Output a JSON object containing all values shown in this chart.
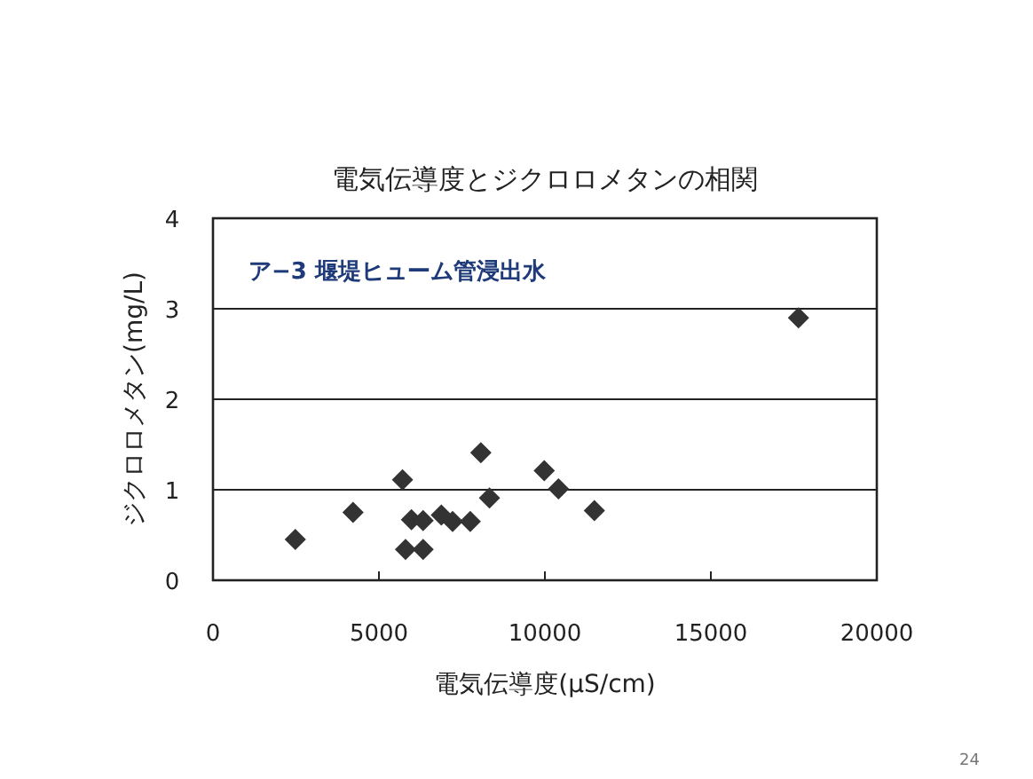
{
  "chart_data": {
    "type": "scatter",
    "title": "電気伝導度とジクロロメタンの相関",
    "xlabel": "電気伝導度(μS/cm)",
    "ylabel": "ジクロロメタン(mg/L)",
    "annotations": [
      "ア−3 堰堤ヒューム管浸出水",
      "24"
    ],
    "x": [
      2480,
      4220,
      5710,
      5800,
      5980,
      6330,
      6330,
      6880,
      7220,
      7750,
      8070,
      8330,
      9980,
      10410,
      11490,
      17640
    ],
    "series": [
      {
        "color": "#333333",
        "values": [
          0.45,
          0.75,
          1.11,
          0.34,
          0.67,
          0.34,
          0.66,
          0.72,
          0.65,
          0.65,
          1.41,
          0.91,
          1.21,
          1.01,
          0.77,
          2.9
        ]
      }
    ],
    "xlim": [
      0,
      20000
    ],
    "ylim": [
      0,
      4
    ],
    "xticks": [
      0,
      5000,
      10000,
      15000,
      20000
    ],
    "yticks": [
      0,
      1,
      2,
      3,
      4
    ],
    "grid": "y",
    "marker": "diamond"
  }
}
